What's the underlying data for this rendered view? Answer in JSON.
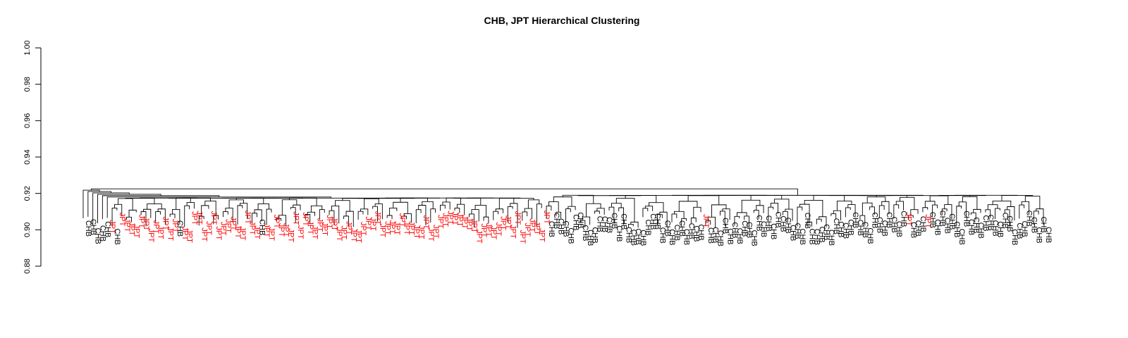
{
  "chart_data": {
    "type": "dendrogram",
    "title": "CHB, JPT Hierarchical Clustering",
    "xlabel": "",
    "ylabel": "",
    "ylim": [
      0.88,
      1.0
    ],
    "y_ticks": [
      "0.88",
      "0.90",
      "0.92",
      "0.94",
      "0.96",
      "0.98",
      "1.00"
    ],
    "grid": false,
    "legend": "none",
    "colors": {
      "CHB": "#000000",
      "JPT": "#ff0000",
      "line": "#000000"
    },
    "leaves": [
      "CHB",
      "CHB",
      "CHB",
      "CHB",
      "CHB",
      "JPT",
      "CHB",
      "JPT",
      "JPT",
      "JPT",
      "JPT",
      "JPT",
      "JPT",
      "JPT",
      "JPT",
      "JPT",
      "JPT",
      "JPT",
      "JPT",
      "CHB",
      "JPT",
      "JPT",
      "JPT",
      "JPT",
      "JPT",
      "JPT",
      "JPT",
      "JPT",
      "JPT",
      "JPT",
      "JPT",
      "JPT",
      "JPT",
      "JPT",
      "JPT",
      "JPT",
      "CHB",
      "JPT",
      "JPT",
      "JPT",
      "JPT",
      "JPT",
      "JPT",
      "JPT",
      "JPT",
      "JPT",
      "JPT",
      "JPT",
      "JPT",
      "JPT",
      "JPT",
      "JPT",
      "JPT",
      "JPT",
      "JPT",
      "JPT",
      "JPT",
      "JPT",
      "JPT",
      "JPT",
      "JPT",
      "JPT",
      "JPT",
      "JPT",
      "JPT",
      "JPT",
      "JPT",
      "JPT",
      "JPT",
      "JPT",
      "JPT",
      "JPT",
      "JPT",
      "JPT",
      "JPT",
      "JPT",
      "JPT",
      "JPT",
      "JPT",
      "JPT",
      "JPT",
      "JPT",
      "JPT",
      "JPT",
      "JPT",
      "JPT",
      "JPT",
      "JPT",
      "JPT",
      "JPT",
      "JPT",
      "JPT",
      "JPT",
      "JPT",
      "JPT",
      "JPT",
      "CHB",
      "CHB",
      "CHB",
      "CHB",
      "CHB",
      "CHB",
      "CHB",
      "CHB",
      "CHB",
      "CHB",
      "CHB",
      "CHB",
      "CHB",
      "CHB",
      "CHB",
      "CHB",
      "CHB",
      "CHB",
      "CHB",
      "CHB",
      "CHB",
      "CHB",
      "CHB",
      "CHB",
      "CHB",
      "CHB",
      "CHB",
      "CHB",
      "CHB",
      "CHB",
      "CHB",
      "CHB",
      "JPT",
      "CHB",
      "CHB",
      "CHB",
      "CHB",
      "CHB",
      "CHB",
      "CHB",
      "CHB",
      "CHB",
      "CHB",
      "CHB",
      "CHB",
      "CHB",
      "CHB",
      "CHB",
      "CHB",
      "CHB",
      "CHB",
      "CHB",
      "CHB",
      "CHB",
      "CHB",
      "CHB",
      "CHB",
      "CHB",
      "CHB",
      "CHB",
      "CHB",
      "CHB",
      "CHB",
      "CHB",
      "CHB",
      "CHB",
      "CHB",
      "CHB",
      "CHB",
      "CHB",
      "CHB",
      "CHB",
      "CHB",
      "CHB",
      "JPT",
      "CHB",
      "CHB",
      "CHB",
      "JPT",
      "CHB",
      "CHB",
      "CHB",
      "CHB",
      "CHB",
      "CHB",
      "CHB",
      "CHB",
      "CHB",
      "CHB",
      "CHB",
      "CHB",
      "CHB",
      "CHB",
      "CHB",
      "CHB",
      "CHB",
      "CHB",
      "CHB",
      "CHB",
      "CHB",
      "CHB",
      "CHB",
      "CHB",
      "CHB"
    ],
    "root_height": 0.922,
    "main_split_height": 0.92,
    "chb_cluster_height": 0.919,
    "leaf_height_range": [
      0.901,
      0.912
    ]
  }
}
